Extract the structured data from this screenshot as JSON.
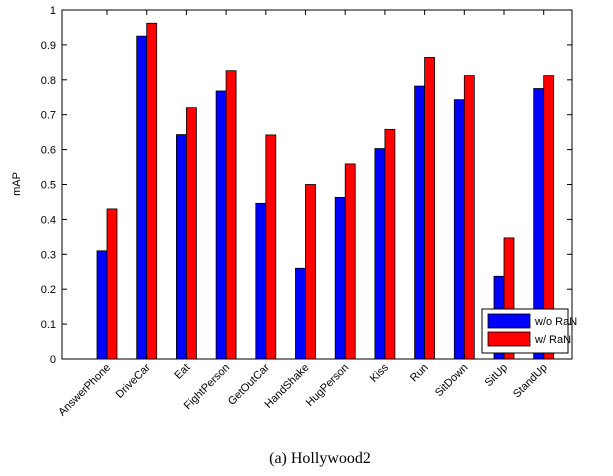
{
  "chart_data": {
    "type": "bar",
    "categories": [
      "AnswerPhone",
      "DriveCar",
      "Eat",
      "FightPerson",
      "GetOutCar",
      "HandShake",
      "HugPerson",
      "Kiss",
      "Run",
      "SitDown",
      "SitUp",
      "StandUp"
    ],
    "series": [
      {
        "name": "w/o RaN",
        "color": "#0000ff",
        "values": [
          0.31,
          0.925,
          0.643,
          0.768,
          0.446,
          0.26,
          0.463,
          0.603,
          0.782,
          0.743,
          0.237,
          0.775
        ]
      },
      {
        "name": "w/ RaN",
        "color": "#ff0000",
        "values": [
          0.43,
          0.962,
          0.72,
          0.826,
          0.642,
          0.5,
          0.559,
          0.658,
          0.864,
          0.812,
          0.347,
          0.812
        ]
      }
    ],
    "title": "",
    "xlabel": "",
    "ylabel": "mAP",
    "ylim": [
      0,
      1
    ],
    "yticks": [
      "0",
      "0.1",
      "0.2",
      "0.3",
      "0.4",
      "0.5",
      "0.6",
      "0.7",
      "0.8",
      "0.9",
      "1"
    ],
    "grid": false,
    "legend_position": "bottom-right"
  },
  "caption": "(a) Hollywood2"
}
